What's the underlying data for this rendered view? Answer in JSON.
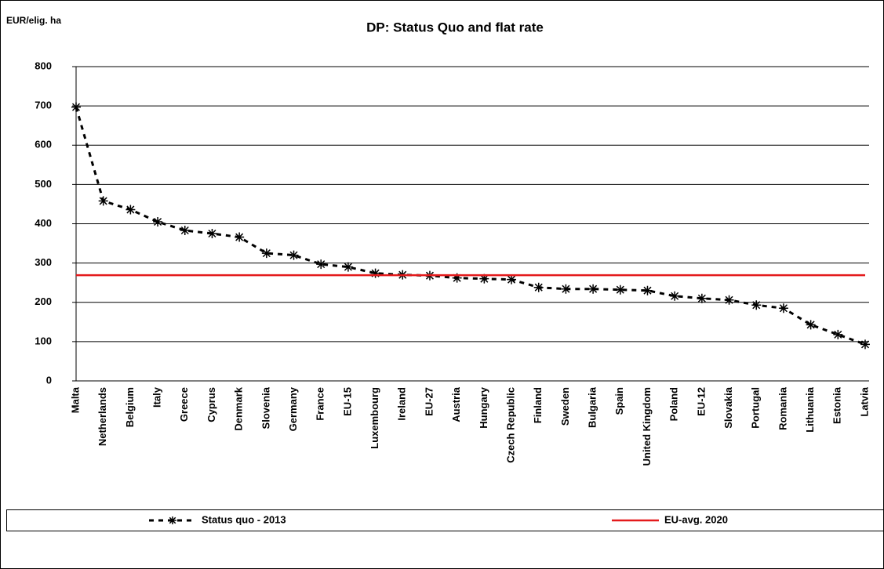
{
  "chart_data": {
    "type": "line",
    "title": "DP: Status Quo and flat rate",
    "y_label": "EUR/elig. ha",
    "categories": [
      "Malta",
      "Netherlands",
      "Belgium",
      "Italy",
      "Greece",
      "Cyprus",
      "Denmark",
      "Slovenia",
      "Germany",
      "France",
      "EU-15",
      "Luxembourg",
      "Ireland",
      "EU-27",
      "Austria",
      "Hungary",
      "Czech Republic",
      "Finland",
      "Sweden",
      "Bulgaria",
      "Spain",
      "United Kingdom",
      "Poland",
      "EU-12",
      "Slovakia",
      "Portugal",
      "Romania",
      "Lithuania",
      "Estonia",
      "Latvia"
    ],
    "series": [
      {
        "name": "Status quo - 2013",
        "color": "#000000",
        "dashed": true,
        "marker": "asterisk",
        "values": [
          697,
          458,
          436,
          405,
          383,
          375,
          366,
          325,
          320,
          297,
          290,
          274,
          270,
          268,
          262,
          260,
          258,
          238,
          234,
          234,
          232,
          230,
          216,
          210,
          206,
          193,
          185,
          143,
          118,
          93
        ]
      },
      {
        "name": "EU-avg. 2020",
        "color": "#e41a1c",
        "dashed": false,
        "marker": null,
        "values": [
          269,
          269,
          269,
          269,
          269,
          269,
          269,
          269,
          269,
          269,
          269,
          269,
          269,
          269,
          269,
          269,
          269,
          269,
          269,
          269,
          269,
          269,
          269,
          269,
          269,
          269,
          269,
          269,
          269,
          269
        ]
      }
    ],
    "ylim": [
      0,
      800
    ],
    "yticks": [
      0,
      100,
      200,
      300,
      400,
      500,
      600,
      700,
      800
    ],
    "grid": true,
    "legend": "bottom"
  }
}
